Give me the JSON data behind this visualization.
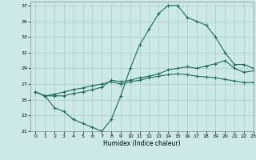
{
  "xlabel": "Humidex (Indice chaleur)",
  "xlim": [
    -0.5,
    23
  ],
  "ylim": [
    21,
    37.5
  ],
  "yticks": [
    21,
    23,
    25,
    27,
    29,
    31,
    33,
    35,
    37
  ],
  "xticks": [
    0,
    1,
    2,
    3,
    4,
    5,
    6,
    7,
    8,
    9,
    10,
    11,
    12,
    13,
    14,
    15,
    16,
    17,
    18,
    19,
    20,
    21,
    22,
    23
  ],
  "background_color": "#cce8e8",
  "grid_color": "#aacccc",
  "line_color": "#1a6b5a",
  "line1_y": [
    26,
    25.5,
    24,
    23.5,
    22.5,
    22,
    21.5,
    21,
    22.5,
    25.5,
    29,
    32,
    34,
    36,
    37,
    37,
    35.5,
    35,
    34.5,
    33,
    31,
    29.5,
    29.5,
    29
  ],
  "line2_y": [
    26,
    25.5,
    25.5,
    25.5,
    25.8,
    26.0,
    26.3,
    26.6,
    27.5,
    27.3,
    27.5,
    27.8,
    28.0,
    28.3,
    28.8,
    29.0,
    29.2,
    29.0,
    29.3,
    29.6,
    30.0,
    29.0,
    28.5,
    28.7
  ],
  "line3_y": [
    26,
    25.5,
    25.7,
    26.0,
    26.3,
    26.5,
    26.8,
    27.0,
    27.3,
    27.0,
    27.3,
    27.5,
    27.8,
    28.0,
    28.2,
    28.3,
    28.2,
    28.0,
    27.9,
    27.8,
    27.6,
    27.4,
    27.2,
    27.2
  ]
}
